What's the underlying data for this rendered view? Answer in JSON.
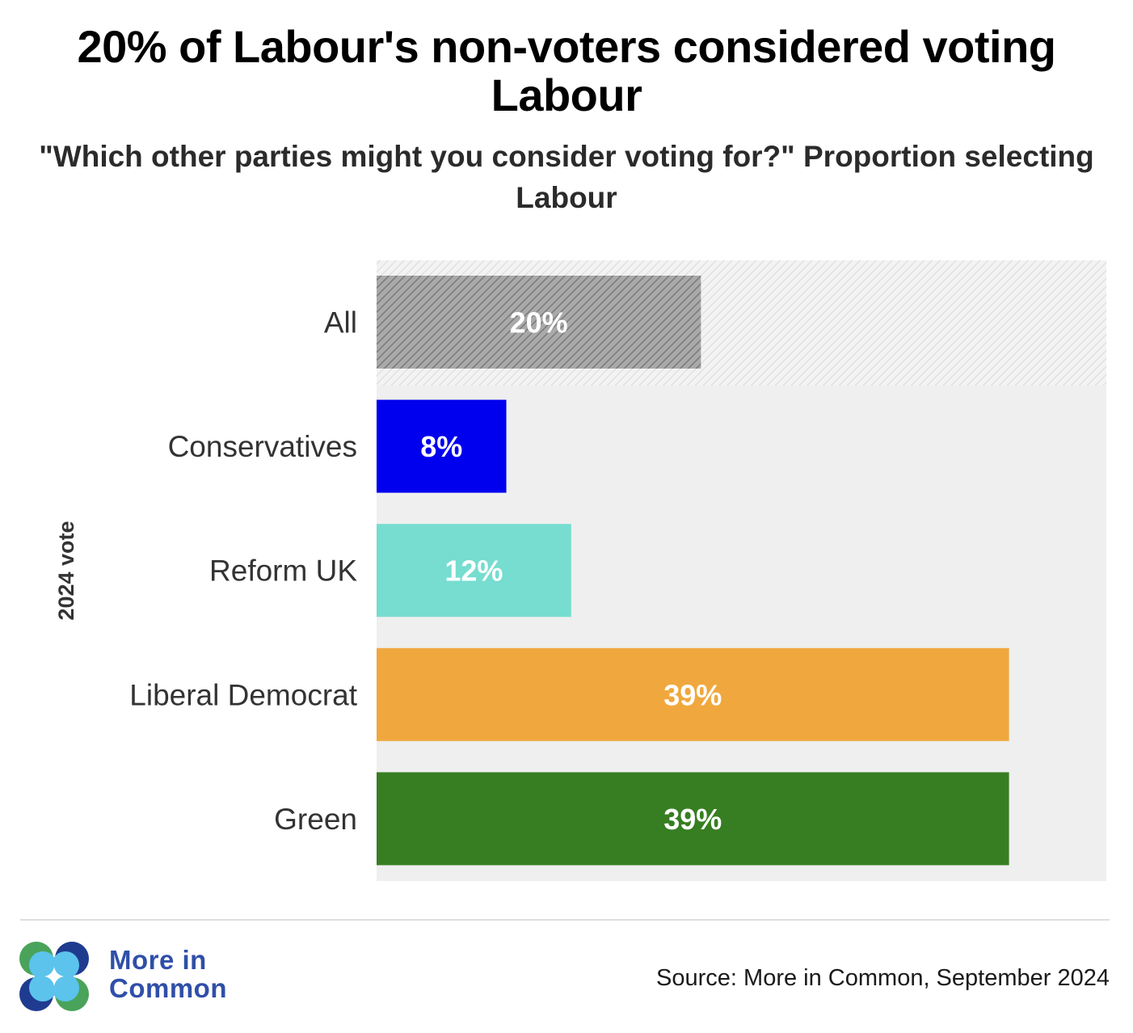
{
  "title": "20% of Labour's non-voters considered voting Labour",
  "subtitle": "\"Which other parties might you consider voting for?\" Proportion selecting Labour",
  "chart_data": {
    "type": "bar",
    "orientation": "horizontal",
    "title": "20% of Labour's non-voters considered voting Labour",
    "subtitle": "\"Which other parties might you consider voting for?\" Proportion selecting Labour",
    "ylabel": "2024 vote",
    "xlabel": "",
    "xlim": [
      0,
      45
    ],
    "categories": [
      "All",
      "Conservatives",
      "Reform UK",
      "Liberal Democrat",
      "Green"
    ],
    "values": [
      20,
      8,
      12,
      39,
      39
    ],
    "data_labels": [
      "20%",
      "8%",
      "12%",
      "39%",
      "39%"
    ],
    "colors": [
      "#999999",
      "#0000ee",
      "#76ddd0",
      "#f0a83e",
      "#377e22"
    ],
    "highlight_category": "All"
  },
  "footer": {
    "brand_line1": "More in",
    "brand_line2": "Common",
    "source": "Source: More in Common, September 2024"
  },
  "colors": {
    "plot_background": "#efefef",
    "all_hatch_light": "#bcbcbc",
    "all_hatch_dark": "#727272"
  }
}
